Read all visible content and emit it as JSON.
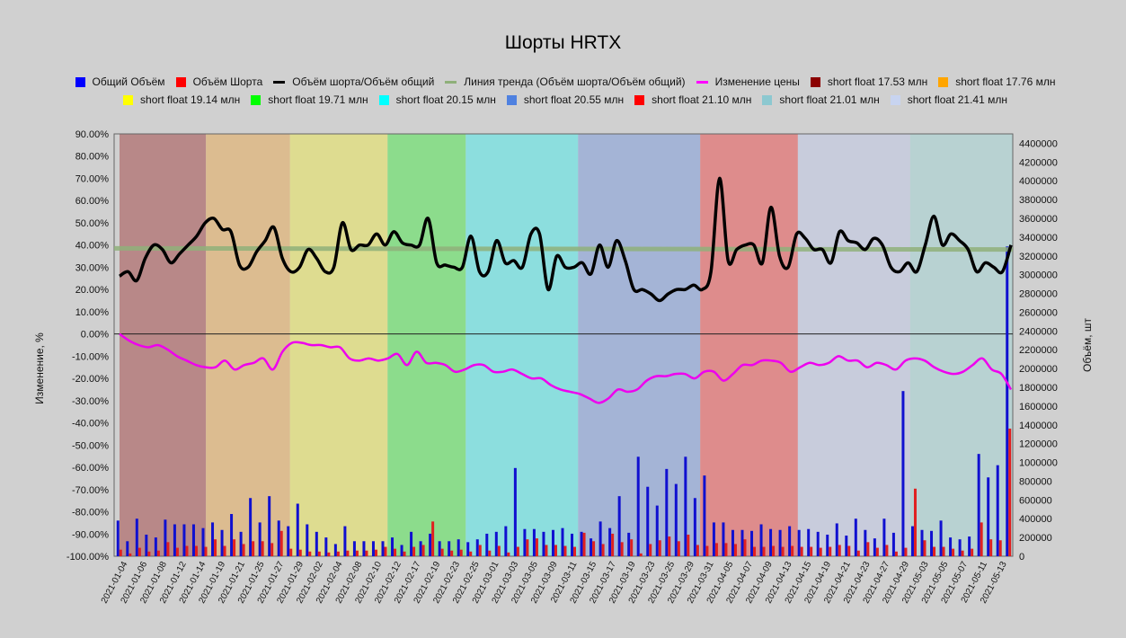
{
  "chart_data": {
    "type": "bar",
    "title": "Шорты HRTX",
    "ylabel_left": "Изменение, %",
    "ylabel_right": "Объём, шт",
    "ylim_left": [
      -100,
      90
    ],
    "ylim_right": [
      0,
      4500000
    ],
    "left_ticks": [
      "90.00%",
      "80.00%",
      "70.00%",
      "60.00%",
      "50.00%",
      "40.00%",
      "30.00%",
      "20.00%",
      "10.00%",
      "0.00%",
      "-10.00%",
      "-20.00%",
      "-30.00%",
      "-40.00%",
      "-50.00%",
      "-60.00%",
      "-70.00%",
      "-80.00%",
      "-90.00%",
      "-100.00%"
    ],
    "right_ticks": [
      "4400000",
      "4200000",
      "4000000",
      "3800000",
      "3600000",
      "3400000",
      "3200000",
      "3000000",
      "2800000",
      "2600000",
      "2400000",
      "2200000",
      "2000000",
      "1800000",
      "1600000",
      "1400000",
      "1200000",
      "1000000",
      "800000",
      "600000",
      "400000",
      "200000",
      "0"
    ],
    "x_labels": [
      "2021-01-04",
      "2021-01-06",
      "2021-01-08",
      "2021-01-12",
      "2021-01-14",
      "2021-01-19",
      "2021-01-21",
      "2021-01-25",
      "2021-01-27",
      "2021-01-29",
      "2021-02-02",
      "2021-02-04",
      "2021-02-08",
      "2021-02-10",
      "2021-02-12",
      "2021-02-17",
      "2021-02-19",
      "2021-02-23",
      "2021-02-25",
      "2021-03-01",
      "2021-03-03",
      "2021-03-05",
      "2021-03-09",
      "2021-03-11",
      "2021-03-15",
      "2021-03-17",
      "2021-03-19",
      "2021-03-23",
      "2021-03-25",
      "2021-03-29",
      "2021-03-31",
      "2021-04-05",
      "2021-04-07",
      "2021-04-09",
      "2021-04-13",
      "2021-04-15",
      "2021-04-19",
      "2021-04-21",
      "2021-04-23",
      "2021-04-27",
      "2021-04-29",
      "2021-05-03",
      "2021-05-05",
      "2021-05-07",
      "2021-05-11",
      "2021-05-13"
    ],
    "legend": [
      {
        "name": "Общий Объём",
        "color": "#0000ff",
        "kind": "box"
      },
      {
        "name": "Объём Шорта",
        "color": "#ff0000",
        "kind": "box"
      },
      {
        "name": "Объём шорта/Объём общий",
        "color": "#000000",
        "kind": "line"
      },
      {
        "name": "Линия тренда (Объём шорта/Объём общий)",
        "color": "#8fb07a",
        "kind": "line"
      },
      {
        "name": "Изменение цены",
        "color": "#ff00ff",
        "kind": "line"
      },
      {
        "name": "short float 17.53 млн",
        "color": "#8b0000",
        "kind": "box"
      },
      {
        "name": "short float 17.76 млн",
        "color": "#ffa500",
        "kind": "box"
      },
      {
        "name": "short float 19.14 млн",
        "color": "#ffff00",
        "kind": "box"
      },
      {
        "name": "short float 19.71 млн",
        "color": "#00ff00",
        "kind": "box"
      },
      {
        "name": "short float 20.15 млн",
        "color": "#00ffff",
        "kind": "box"
      },
      {
        "name": "short float 20.55 млн",
        "color": "#4f81e0",
        "kind": "box"
      },
      {
        "name": "short float 21.10 млн",
        "color": "#ff0000",
        "kind": "box"
      },
      {
        "name": "short float 21.01 млн",
        "color": "#8cc8d0",
        "kind": "box"
      },
      {
        "name": "short float 21.41 млн",
        "color": "#c8d4f0",
        "kind": "box"
      }
    ],
    "bands": [
      {
        "from": "2021-01-04",
        "to": "2021-01-15",
        "color": "#b88888"
      },
      {
        "from": "2021-01-15",
        "to": "2021-01-28",
        "color": "#dcbc90"
      },
      {
        "from": "2021-01-28",
        "to": "2021-02-11",
        "color": "#dedc90"
      },
      {
        "from": "2021-02-11",
        "to": "2021-02-24",
        "color": "#8cdc8c"
      },
      {
        "from": "2021-02-24",
        "to": "2021-03-12",
        "color": "#8cdede"
      },
      {
        "from": "2021-03-12",
        "to": "2021-03-30",
        "color": "#a4b4d6"
      },
      {
        "from": "2021-03-30",
        "to": "2021-04-14",
        "color": "#de8c8c"
      },
      {
        "from": "2021-04-14",
        "to": "2021-04-30",
        "color": "#c8ccdc"
      },
      {
        "from": "2021-04-30",
        "to": "2021-05-13",
        "color": "#b8d2d2"
      }
    ],
    "series": [
      {
        "name": "Общий Объём",
        "axis": "right",
        "type": "bar",
        "values": [
          380000,
          160000,
          400000,
          230000,
          200000,
          390000,
          340000,
          340000,
          340000,
          300000,
          360000,
          280000,
          450000,
          260000,
          620000,
          360000,
          640000,
          380000,
          320000,
          560000,
          340000,
          260000,
          200000,
          130000,
          320000,
          160000,
          160000,
          160000,
          160000,
          200000,
          120000,
          260000,
          160000,
          240000,
          160000,
          160000,
          180000,
          150000,
          180000,
          240000,
          260000,
          320000,
          940000,
          290000,
          290000,
          260000,
          280000,
          300000,
          240000,
          260000,
          190000,
          370000,
          300000,
          640000,
          250000,
          1060000,
          740000,
          540000,
          930000,
          770000,
          1060000,
          620000,
          860000,
          360000,
          360000,
          280000,
          280000,
          270000,
          340000,
          290000,
          280000,
          320000,
          280000,
          290000,
          260000,
          230000,
          350000,
          220000,
          400000,
          280000,
          190000,
          400000,
          250000,
          1760000,
          320000,
          280000,
          270000,
          380000,
          200000,
          180000,
          210000,
          1090000,
          840000,
          970000,
          3300000
        ]
      },
      {
        "name": "Объём Шорта",
        "axis": "right",
        "type": "bar",
        "values": [
          70000,
          30000,
          90000,
          50000,
          60000,
          150000,
          90000,
          110000,
          110000,
          100000,
          180000,
          110000,
          180000,
          130000,
          160000,
          160000,
          140000,
          270000,
          80000,
          70000,
          50000,
          50000,
          40000,
          50000,
          60000,
          60000,
          60000,
          70000,
          100000,
          80000,
          50000,
          100000,
          120000,
          370000,
          80000,
          60000,
          70000,
          50000,
          120000,
          60000,
          110000,
          40000,
          100000,
          180000,
          190000,
          120000,
          120000,
          110000,
          100000,
          250000,
          160000,
          130000,
          240000,
          150000,
          180000,
          30000,
          130000,
          170000,
          210000,
          160000,
          230000,
          120000,
          110000,
          140000,
          140000,
          130000,
          180000,
          100000,
          100000,
          110000,
          100000,
          110000,
          100000,
          100000,
          90000,
          100000,
          120000,
          110000,
          60000,
          150000,
          90000,
          120000,
          50000,
          90000,
          720000,
          170000,
          100000,
          100000,
          80000,
          60000,
          80000,
          360000,
          180000,
          170000,
          1360000
        ]
      },
      {
        "name": "Объём шорта/Объём общий",
        "axis": "left",
        "type": "line",
        "values": [
          26,
          28,
          24,
          34,
          40,
          38,
          32,
          36,
          40,
          44,
          50,
          52,
          47,
          46,
          31,
          30,
          37,
          42,
          48,
          34,
          28,
          30,
          38,
          34,
          28,
          30,
          50,
          38,
          40,
          40,
          45,
          40,
          46,
          41,
          40,
          40,
          52,
          32,
          31,
          30,
          30,
          44,
          28,
          28,
          42,
          32,
          33,
          30,
          45,
          45,
          20,
          35,
          30,
          30,
          32,
          27,
          40,
          30,
          42,
          33,
          20,
          20,
          18,
          15,
          18,
          20,
          20,
          22,
          20,
          28,
          70,
          33,
          38,
          40,
          40,
          32,
          57,
          35,
          30,
          45,
          43,
          38,
          38,
          32,
          46,
          42,
          41,
          38,
          43,
          40,
          30,
          28,
          32,
          28,
          40,
          53,
          40,
          45,
          42,
          38,
          28,
          32,
          30,
          28,
          40
        ]
      },
      {
        "name": "Линия тренда (Объём шорта/Объём общий)",
        "axis": "left",
        "type": "line",
        "values": [
          38.5,
          38.0
        ]
      },
      {
        "name": "Изменение цены",
        "axis": "left",
        "type": "line",
        "values": [
          0,
          -3,
          -5,
          -6,
          -5,
          -7,
          -10,
          -12,
          -14,
          -15,
          -15,
          -12,
          -16,
          -14,
          -13,
          -11,
          -16,
          -8,
          -4,
          -4,
          -5,
          -5,
          -6,
          -6,
          -11,
          -12,
          -11,
          -12,
          -11,
          -9,
          -14,
          -8,
          -13,
          -13,
          -14,
          -17,
          -16,
          -14,
          -14,
          -17,
          -17,
          -16,
          -18,
          -20,
          -20,
          -23,
          -25,
          -26,
          -27,
          -29,
          -31,
          -29,
          -25,
          -26,
          -25,
          -21,
          -19,
          -19,
          -18,
          -18,
          -20,
          -17,
          -17,
          -21,
          -18,
          -14,
          -14,
          -12,
          -12,
          -13,
          -17,
          -15,
          -13,
          -14,
          -13,
          -10,
          -12,
          -12,
          -15,
          -13,
          -14,
          -16,
          -12,
          -11,
          -12,
          -15,
          -17,
          -18,
          -17,
          -14,
          -11,
          -16,
          -18,
          -25
        ]
      }
    ]
  }
}
